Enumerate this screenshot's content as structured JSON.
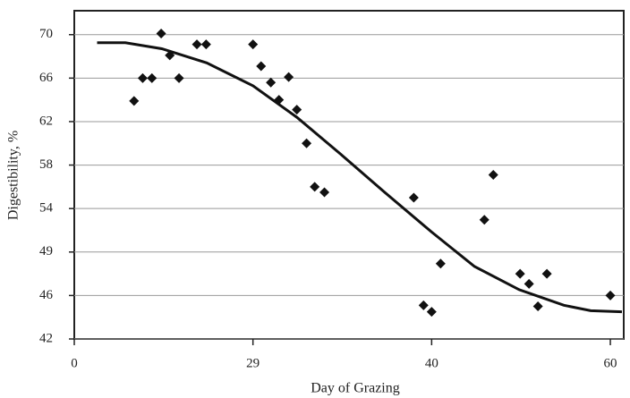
{
  "chart_data": {
    "type": "scatter",
    "x_label": "Day of Grazing",
    "y_label": "Digestibility, %",
    "xlim": [
      0,
      61.5
    ],
    "ylim": [
      42,
      72.2
    ],
    "xticks": [
      0,
      29,
      40,
      60
    ],
    "yticks": [
      42,
      46,
      49,
      54,
      58,
      62,
      66,
      70
    ],
    "grid": true,
    "color": "#111",
    "points": {
      "x": [
        9.7,
        11.1,
        12.6,
        14.1,
        15.5,
        17.0,
        19.9,
        21.4,
        29,
        29.5,
        30.1,
        30.6,
        31.2,
        31.7,
        32.3,
        32.8,
        33.4,
        38.9,
        39.5,
        40,
        41.0,
        45.9,
        46.9,
        49.9,
        50.9,
        51.9,
        52.9,
        60
      ],
      "values": [
        63.9,
        66,
        66,
        70.1,
        68.1,
        66,
        69.1,
        69.1,
        69.1,
        67.1,
        65.6,
        64.0,
        66.1,
        63.1,
        60.0,
        56.0,
        55.5,
        55.0,
        45.1,
        44.5,
        48.2,
        52.7,
        57.1,
        47.5,
        46.8,
        45.0,
        47.5,
        46
      ]
    },
    "curve": {
      "x": [
        3.7,
        8.3,
        14.2,
        21.5,
        29,
        31.7,
        34.4,
        37.1,
        40,
        44.8,
        49.8,
        54.8,
        57.8,
        61.3
      ],
      "values": [
        69.25,
        69.25,
        68.7,
        67.4,
        65.3,
        62.4,
        59.0,
        55.5,
        51.3,
        48.0,
        46.4,
        45.1,
        44.6,
        44.5
      ]
    }
  }
}
